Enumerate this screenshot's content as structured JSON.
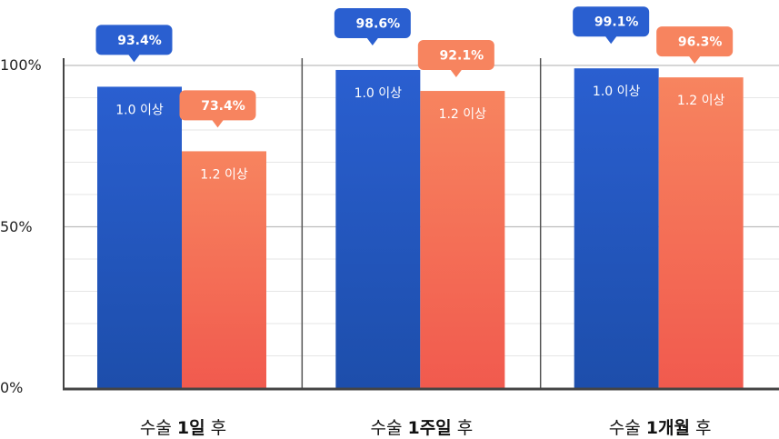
{
  "chart_data": {
    "type": "bar",
    "categories": [
      "수술 1일 후",
      "수술 1주일 후",
      "수술 1개월 후"
    ],
    "category_parts": [
      {
        "prefix": "수술 ",
        "emph": "1일",
        "suffix": " 후"
      },
      {
        "prefix": "수술 ",
        "emph": "1주일",
        "suffix": " 후"
      },
      {
        "prefix": "수술 ",
        "emph": "1개월",
        "suffix": " 후"
      }
    ],
    "series": [
      {
        "name": "1.0 이상",
        "values": [
          93.4,
          98.6,
          99.1
        ],
        "value_labels": [
          "93.4%",
          "98.6%",
          "99.1%"
        ],
        "color": "#2a5fd0",
        "color_bottom": "#1d4eab"
      },
      {
        "name": "1.2 이상",
        "values": [
          73.4,
          92.1,
          96.3
        ],
        "value_labels": [
          "73.4%",
          "92.1%",
          "96.3%"
        ],
        "color": "#f7845f",
        "color_bottom": "#f15a4e"
      }
    ],
    "ylim": [
      0,
      100
    ],
    "yticks": [
      0,
      50,
      100
    ],
    "ytick_labels": [
      "0%",
      "50%",
      "100%"
    ],
    "grid": true,
    "title": "",
    "xlabel": "",
    "ylabel": ""
  }
}
